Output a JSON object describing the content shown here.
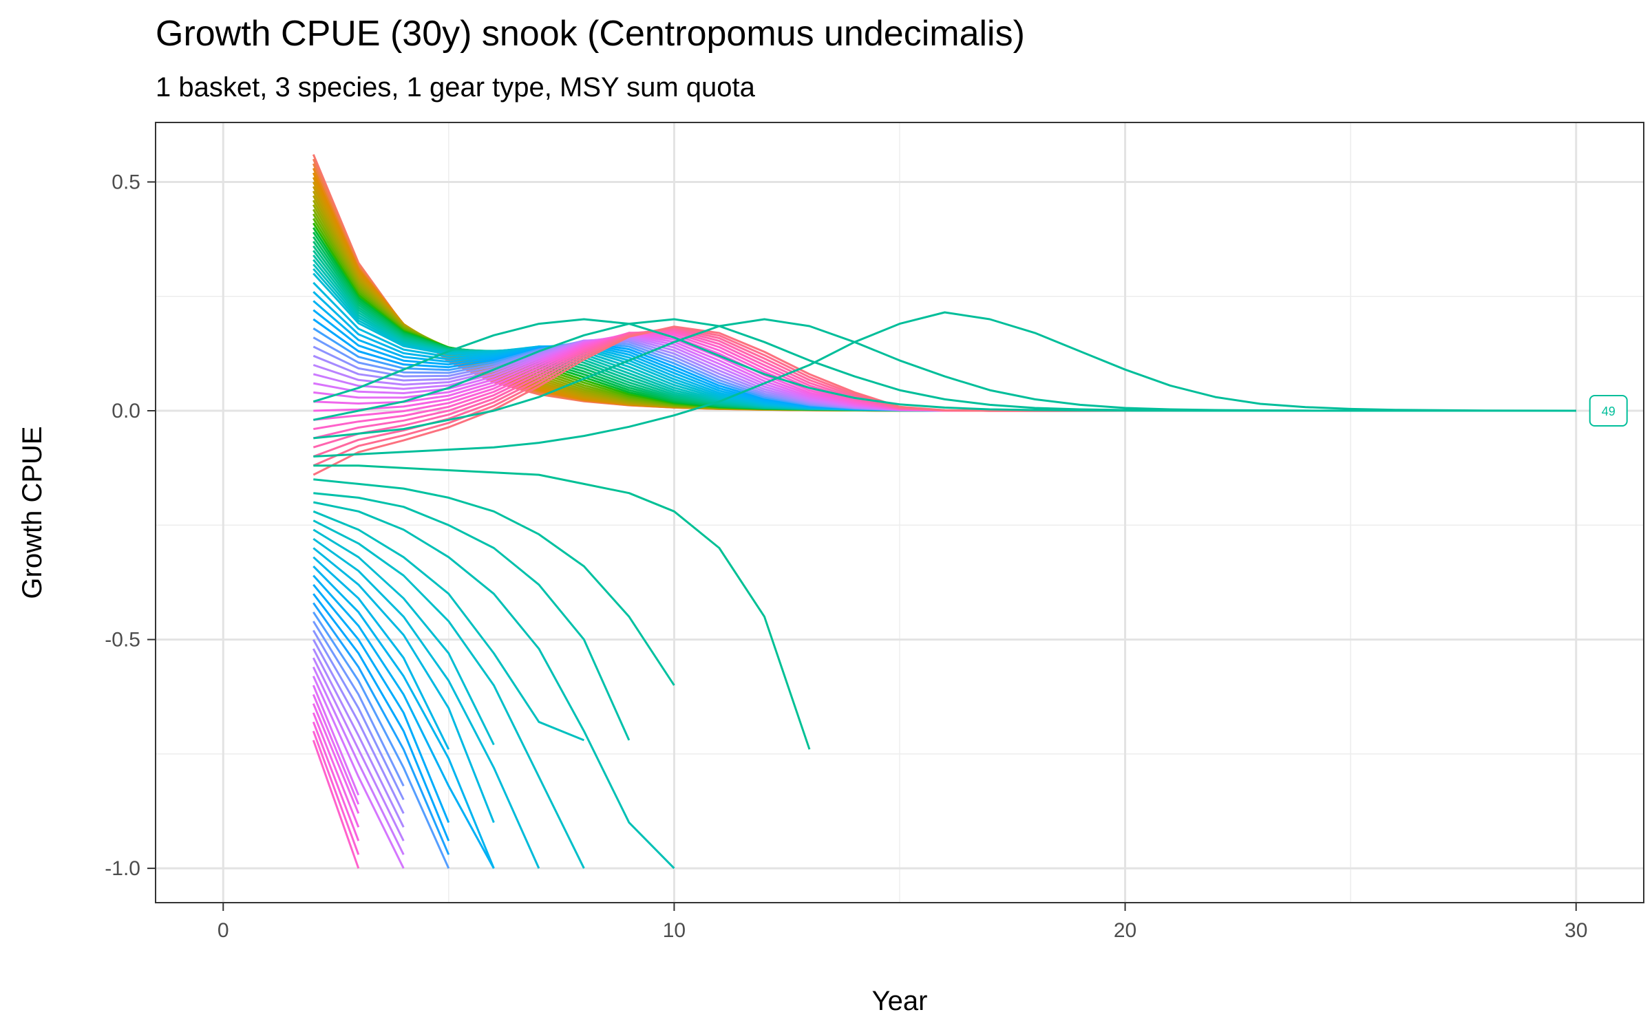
{
  "chart_data": {
    "type": "line",
    "title": "Growth CPUE (30y) snook (Centropomus undecimalis)",
    "subtitle": "1 basket, 3 species, 1 gear type, MSY sum quota",
    "xlabel": "Year",
    "ylabel": "Growth CPUE",
    "xlim": [
      -1.5,
      31.5
    ],
    "ylim": [
      -1.075,
      0.63
    ],
    "x_ticks": [
      0,
      10,
      20,
      30
    ],
    "x_tick_labels": [
      "0",
      "10",
      "20",
      "30"
    ],
    "y_ticks": [
      0.5,
      0.0,
      -0.5,
      -1.0
    ],
    "y_tick_labels": [
      "0.5",
      "0.0",
      "-0.5",
      "-1.0"
    ],
    "x_minor_ticks": [
      5,
      15,
      25
    ],
    "y_minor_ticks": [
      0.25,
      -0.25,
      -0.75
    ],
    "grid": true,
    "legend": "none",
    "series_count": 49,
    "series_start_values": [
      0.56,
      0.55,
      0.54,
      0.53,
      0.52,
      0.51,
      0.5,
      0.49,
      0.48,
      0.47,
      0.46,
      0.45,
      0.44,
      0.43,
      0.42,
      0.41,
      0.4,
      0.39,
      0.38,
      0.37,
      0.36,
      0.35,
      0.34,
      0.33,
      0.32,
      0.31,
      0.3,
      0.28,
      0.26,
      0.24,
      0.22,
      0.2,
      0.18,
      0.16,
      0.14,
      0.12,
      0.1,
      0.08,
      0.06,
      0.04,
      0.02,
      0.0,
      -0.02,
      -0.04,
      -0.06,
      -0.08,
      -0.1,
      -0.12,
      -0.14
    ],
    "declining_series": [
      {
        "x": [
          2,
          3
        ],
        "y": [
          -0.72,
          -1.0
        ]
      },
      {
        "x": [
          2,
          3
        ],
        "y": [
          -0.7,
          -0.97
        ]
      },
      {
        "x": [
          2,
          3
        ],
        "y": [
          -0.68,
          -0.94
        ]
      },
      {
        "x": [
          2,
          3
        ],
        "y": [
          -0.66,
          -0.91
        ]
      },
      {
        "x": [
          2,
          3
        ],
        "y": [
          -0.64,
          -0.88
        ]
      },
      {
        "x": [
          2,
          3
        ],
        "y": [
          -0.62,
          -0.86
        ]
      },
      {
        "x": [
          2,
          3
        ],
        "y": [
          -0.6,
          -0.84
        ]
      },
      {
        "x": [
          2,
          3,
          4
        ],
        "y": [
          -0.58,
          -0.8,
          -1.0
        ]
      },
      {
        "x": [
          2,
          3,
          4
        ],
        "y": [
          -0.56,
          -0.77,
          -0.97
        ]
      },
      {
        "x": [
          2,
          3,
          4
        ],
        "y": [
          -0.54,
          -0.74,
          -0.94
        ]
      },
      {
        "x": [
          2,
          3,
          4
        ],
        "y": [
          -0.52,
          -0.71,
          -0.91
        ]
      },
      {
        "x": [
          2,
          3,
          4
        ],
        "y": [
          -0.5,
          -0.68,
          -0.88
        ]
      },
      {
        "x": [
          2,
          3,
          4
        ],
        "y": [
          -0.48,
          -0.65,
          -0.85
        ]
      },
      {
        "x": [
          2,
          3,
          4
        ],
        "y": [
          -0.46,
          -0.62,
          -0.82
        ]
      },
      {
        "x": [
          2,
          3,
          4,
          5
        ],
        "y": [
          -0.44,
          -0.59,
          -0.78,
          -1.0
        ]
      },
      {
        "x": [
          2,
          3,
          4,
          5
        ],
        "y": [
          -0.42,
          -0.56,
          -0.74,
          -0.97
        ]
      },
      {
        "x": [
          2,
          3,
          4,
          5
        ],
        "y": [
          -0.4,
          -0.53,
          -0.7,
          -0.94
        ]
      },
      {
        "x": [
          2,
          3,
          4,
          5
        ],
        "y": [
          -0.38,
          -0.5,
          -0.66,
          -0.9
        ]
      },
      {
        "x": [
          2,
          3,
          4,
          5,
          6
        ],
        "y": [
          -0.36,
          -0.47,
          -0.62,
          -0.82,
          -1.0
        ]
      },
      {
        "x": [
          2,
          3,
          4,
          5,
          6
        ],
        "y": [
          -0.34,
          -0.44,
          -0.58,
          -0.76,
          -1.0
        ]
      },
      {
        "x": [
          2,
          3,
          4,
          5
        ],
        "y": [
          -0.32,
          -0.41,
          -0.54,
          -0.74
        ]
      },
      {
        "x": [
          2,
          3,
          4,
          5,
          6
        ],
        "y": [
          -0.3,
          -0.38,
          -0.49,
          -0.65,
          -0.9
        ]
      },
      {
        "x": [
          2,
          3,
          4,
          5,
          6,
          7
        ],
        "y": [
          -0.28,
          -0.35,
          -0.45,
          -0.59,
          -0.78,
          -1.0
        ]
      },
      {
        "x": [
          2,
          3,
          4,
          5,
          6
        ],
        "y": [
          -0.26,
          -0.32,
          -0.41,
          -0.53,
          -0.73
        ]
      },
      {
        "x": [
          2,
          3,
          4,
          5,
          6,
          7,
          8
        ],
        "y": [
          -0.24,
          -0.29,
          -0.36,
          -0.46,
          -0.6,
          -0.8,
          -1.0
        ]
      },
      {
        "x": [
          2,
          3,
          4,
          5,
          6,
          7,
          8
        ],
        "y": [
          -0.22,
          -0.26,
          -0.32,
          -0.4,
          -0.53,
          -0.68,
          -0.72
        ]
      },
      {
        "x": [
          2,
          3,
          4,
          5,
          6,
          7,
          8,
          9,
          10
        ],
        "y": [
          -0.2,
          -0.22,
          -0.26,
          -0.32,
          -0.4,
          -0.52,
          -0.7,
          -0.9,
          -1.0
        ]
      },
      {
        "x": [
          2,
          3,
          4,
          5,
          6,
          7,
          8,
          9
        ],
        "y": [
          -0.18,
          -0.19,
          -0.21,
          -0.25,
          -0.3,
          -0.38,
          -0.5,
          -0.72
        ]
      },
      {
        "x": [
          2,
          3,
          4,
          5,
          6,
          7,
          8,
          9,
          10
        ],
        "y": [
          -0.15,
          -0.16,
          -0.17,
          -0.19,
          -0.22,
          -0.27,
          -0.34,
          -0.45,
          -0.6
        ]
      },
      {
        "x": [
          2,
          3,
          4,
          5,
          6,
          7,
          8,
          9,
          10,
          11,
          12,
          13
        ],
        "y": [
          -0.12,
          -0.12,
          -0.125,
          -0.13,
          -0.135,
          -0.14,
          -0.16,
          -0.18,
          -0.22,
          -0.3,
          -0.45,
          -0.74
        ]
      }
    ],
    "peak_series": [
      {
        "x": [
          2,
          3,
          4,
          5,
          6,
          7,
          8,
          9,
          10,
          11,
          12,
          13,
          14,
          15,
          16,
          17,
          18,
          19,
          20,
          21,
          22,
          23,
          24,
          25,
          26,
          27,
          28,
          29,
          30
        ],
        "y": [
          -0.1,
          -0.095,
          -0.09,
          -0.085,
          -0.08,
          -0.07,
          -0.055,
          -0.035,
          -0.01,
          0.02,
          0.06,
          0.1,
          0.15,
          0.19,
          0.215,
          0.2,
          0.17,
          0.13,
          0.09,
          0.055,
          0.03,
          0.015,
          0.008,
          0.004,
          0.002,
          0.001,
          0.0005,
          0.0002,
          0.0
        ]
      },
      {
        "x": [
          2,
          3,
          4,
          5,
          6,
          7,
          8,
          9,
          10,
          11,
          12,
          13,
          14,
          15,
          16,
          17,
          18,
          19,
          20,
          21,
          22,
          23,
          24,
          25,
          26,
          27,
          28,
          29,
          30
        ],
        "y": [
          -0.06,
          -0.05,
          -0.04,
          -0.02,
          0.0,
          0.03,
          0.07,
          0.11,
          0.15,
          0.185,
          0.2,
          0.185,
          0.15,
          0.11,
          0.075,
          0.045,
          0.025,
          0.013,
          0.006,
          0.003,
          0.0015,
          0.0007,
          0.0003,
          0.0001,
          0.0,
          0.0,
          0.0,
          0.0,
          0.0
        ]
      },
      {
        "x": [
          2,
          3,
          4,
          5,
          6,
          7,
          8,
          9,
          10,
          11,
          12,
          13,
          14,
          15,
          16,
          17,
          18,
          19,
          20,
          21,
          22,
          23,
          24,
          25,
          26,
          27,
          28,
          29,
          30
        ],
        "y": [
          -0.02,
          0.0,
          0.02,
          0.05,
          0.09,
          0.13,
          0.165,
          0.19,
          0.2,
          0.185,
          0.15,
          0.11,
          0.075,
          0.045,
          0.025,
          0.013,
          0.006,
          0.003,
          0.0015,
          0.0007,
          0.0003,
          0.0001,
          0.0,
          0.0,
          0.0,
          0.0,
          0.0,
          0.0,
          0.0
        ]
      },
      {
        "x": [
          2,
          3,
          4,
          5,
          6,
          7,
          8,
          9,
          10,
          11,
          12,
          13,
          14,
          15,
          16,
          17,
          18,
          19,
          20,
          21,
          22,
          23,
          24,
          25,
          26,
          27,
          28,
          29,
          30
        ],
        "y": [
          0.02,
          0.05,
          0.09,
          0.13,
          0.165,
          0.19,
          0.2,
          0.19,
          0.16,
          0.12,
          0.08,
          0.05,
          0.028,
          0.014,
          0.007,
          0.003,
          0.0015,
          0.0007,
          0.0003,
          0.0001,
          0.0,
          0.0,
          0.0,
          0.0,
          0.0,
          0.0,
          0.0,
          0.0,
          0.0
        ]
      }
    ],
    "end_label": "49",
    "end_label_color": "#00BE9A"
  }
}
